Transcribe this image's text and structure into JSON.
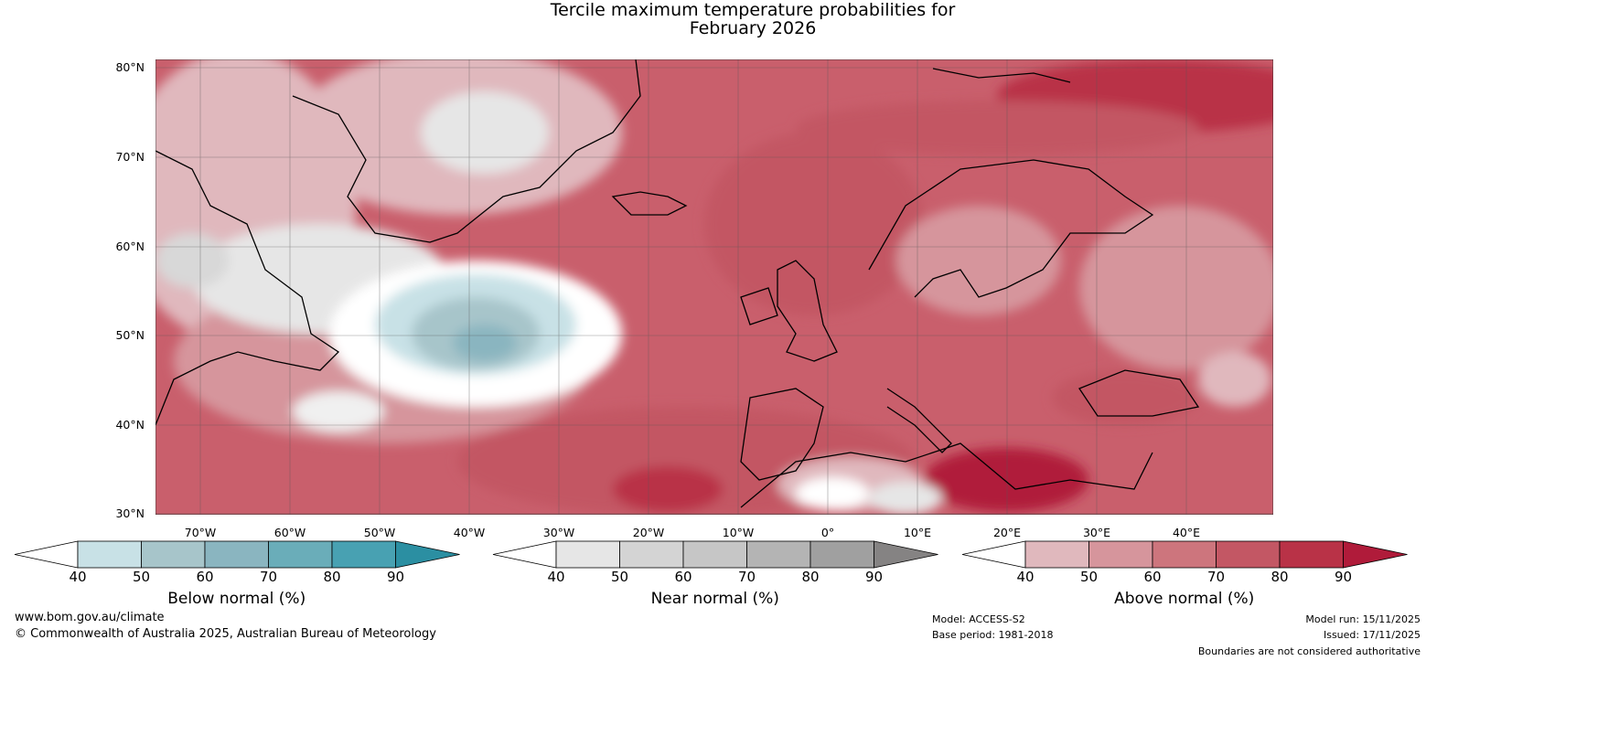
{
  "title_line1": "Tercile maximum temperature probabilities for",
  "title_line2": "February 2026",
  "lat_labels": [
    "80°N",
    "70°N",
    "60°N",
    "50°N",
    "40°N",
    "30°N"
  ],
  "lon_labels": [
    "70°W",
    "60°W",
    "50°W",
    "40°W",
    "30°W",
    "20°W",
    "10°W",
    "0°",
    "10°E",
    "20°E",
    "30°E",
    "40°E"
  ],
  "colorbars": [
    {
      "label": "Below normal (%)",
      "ticks": [
        "40",
        "50",
        "60",
        "70",
        "80",
        "90"
      ],
      "colors": [
        "#ffffff",
        "#c8e1e6",
        "#a7c5ca",
        "#8ab5c0",
        "#6aadb9",
        "#48a1b2",
        "#2b8fa2"
      ]
    },
    {
      "label": "Near normal (%)",
      "ticks": [
        "40",
        "50",
        "60",
        "70",
        "80",
        "90"
      ],
      "colors": [
        "#ffffff",
        "#e6e6e6",
        "#d4d4d4",
        "#c6c6c6",
        "#b4b4b4",
        "#a0a0a0",
        "#858383"
      ]
    },
    {
      "label": "Above normal (%)",
      "ticks": [
        "40",
        "50",
        "60",
        "70",
        "80",
        "90"
      ],
      "colors": [
        "#ffffff",
        "#e0b8bd",
        "#d6959c",
        "#cd757d",
        "#c35764",
        "#b93247",
        "#b01b3a"
      ]
    }
  ],
  "footer": {
    "website": "www.bom.gov.au/climate",
    "copyright": "© Commonwealth of Australia 2025, Australian Bureau of Meteorology",
    "model": "Model: ACCESS-S2",
    "base_period": "Base period: 1981-2018",
    "model_run": "Model run: 15/11/2025",
    "issued": "Issued: 17/11/2025",
    "disclaimer": "Boundaries are not considered authoritative"
  }
}
